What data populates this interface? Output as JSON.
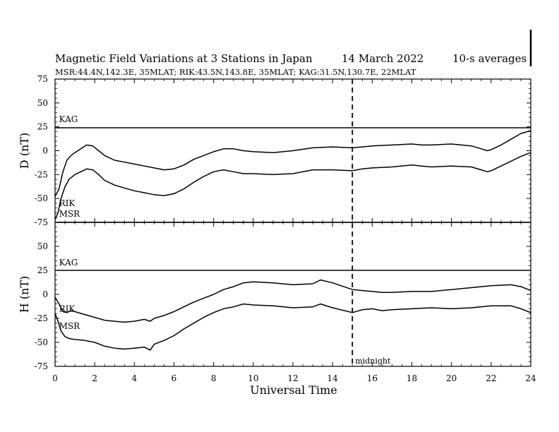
{
  "title": "Magnetic Field Variations at 3 Stations in Japan",
  "date": "14 March   2022",
  "averaging": "10-s averages",
  "subtitle": "MSR:44.4N,142.3E, 35MLAT;  RIK:43.5N,143.8E, 35MLAT;  KAG:31.5N,130.7E, 22MLAT",
  "chart_data": {
    "type": "line",
    "xlabel": "Universal Time",
    "xlim": [
      0,
      24
    ],
    "x_ticks": [
      "0",
      "2",
      "4",
      "6",
      "8",
      "10",
      "12",
      "14",
      "16",
      "18",
      "20",
      "22",
      "24"
    ],
    "grid": false,
    "vline": {
      "x": 15,
      "label": "midnight",
      "style": "dashed"
    },
    "panels": [
      {
        "id": "D",
        "ylabel": "D (nT)",
        "ylim": [
          -75,
          75
        ],
        "y_ticks": [
          "75",
          "50",
          "25",
          "0",
          "-25",
          "-50",
          "-75"
        ],
        "series": [
          {
            "name": "KAG",
            "x": [
              0,
              24
            ],
            "values": [
              24,
              24
            ]
          },
          {
            "name": "",
            "x": [
              0,
              0.2,
              0.4,
              0.6,
              0.8,
              1.0,
              1.3,
              1.6,
              1.9,
              2.2,
              2.5,
              3.0,
              3.5,
              4.0,
              4.5,
              5.0,
              5.5,
              6.0,
              6.5,
              7.0,
              7.5,
              8.0,
              8.5,
              9.0,
              9.5,
              10.0,
              11.0,
              12.0,
              13.0,
              14.0,
              15.0,
              15.5,
              16.0,
              17.0,
              18.0,
              18.5,
              19.0,
              20.0,
              21.0,
              21.5,
              21.8,
              22.0,
              22.5,
              23.0,
              23.5,
              24.0
            ],
            "values": [
              -48,
              -40,
              -22,
              -10,
              -5,
              -2,
              2,
              6,
              5,
              0,
              -5,
              -10,
              -12,
              -14,
              -16,
              -18,
              -20,
              -19,
              -15,
              -9,
              -5,
              -1,
              2,
              2,
              0,
              -1,
              -2,
              0,
              3,
              4,
              3,
              4,
              5,
              6,
              7,
              6,
              6,
              7,
              5,
              2,
              0,
              1,
              6,
              12,
              18,
              21
            ]
          },
          {
            "name": "RIK",
            "x": [
              0,
              0.15,
              0.3,
              0.5,
              0.7,
              1.0,
              1.3,
              1.6,
              1.9,
              2.2,
              2.5,
              3.0,
              3.5,
              4.0,
              4.5,
              5.0,
              5.5,
              6.0,
              6.5,
              7.0,
              7.5,
              8.0,
              8.5,
              9.0,
              9.5,
              10.0,
              11.0,
              12.0,
              13.0,
              14.0,
              15.0,
              15.5,
              16.0,
              17.0,
              18.0,
              18.5,
              19.0,
              20.0,
              21.0,
              21.5,
              21.8,
              22.0,
              22.5,
              23.0,
              23.5,
              24.0
            ],
            "values": [
              -72,
              -65,
              -50,
              -38,
              -30,
              -25,
              -22,
              -19,
              -20,
              -25,
              -31,
              -36,
              -39,
              -42,
              -44,
              -46,
              -47,
              -45,
              -40,
              -33,
              -27,
              -22,
              -20,
              -22,
              -24,
              -24,
              -25,
              -24,
              -20,
              -20,
              -21,
              -19,
              -18,
              -17,
              -15,
              -16,
              -17,
              -16,
              -17,
              -20,
              -22,
              -21,
              -16,
              -11,
              -6,
              -2
            ]
          },
          {
            "name": "MSR",
            "x": [
              0,
              24
            ],
            "values": [
              -75,
              -75
            ]
          }
        ]
      },
      {
        "id": "H",
        "ylabel": "H (nT)",
        "ylim": [
          -75,
          75
        ],
        "y_ticks": [
          "75",
          "50",
          "25",
          "0",
          "-25",
          "-50",
          "-75"
        ],
        "series": [
          {
            "name": "KAG",
            "x": [
              0,
              24
            ],
            "values": [
              25,
              25
            ]
          },
          {
            "name": "RIK",
            "x": [
              0,
              0.2,
              0.4,
              0.6,
              0.8,
              1.0,
              1.5,
              2.0,
              2.5,
              3.0,
              3.5,
              4.0,
              4.5,
              4.8,
              5.0,
              5.5,
              6.0,
              6.5,
              7.0,
              7.5,
              8.0,
              8.5,
              9.0,
              9.5,
              10.0,
              11.0,
              12.0,
              13.0,
              13.4,
              14.0,
              15.0,
              15.5,
              16.0,
              16.5,
              17.0,
              18.0,
              19.0,
              20.0,
              21.0,
              22.0,
              23.0,
              23.5,
              24.0
            ],
            "values": [
              -3,
              -10,
              -18,
              -19,
              -17,
              -18,
              -21,
              -24,
              -27,
              -28,
              -29,
              -28,
              -26,
              -28,
              -25,
              -22,
              -18,
              -13,
              -8,
              -4,
              0,
              5,
              8,
              12,
              13,
              12,
              10,
              11,
              15,
              12,
              5,
              4,
              3,
              2,
              2,
              3,
              3,
              5,
              7,
              9,
              10,
              8,
              4
            ]
          },
          {
            "name": "MSR",
            "x": [
              0,
              0.15,
              0.3,
              0.5,
              0.7,
              1.0,
              1.5,
              2.0,
              2.5,
              3.0,
              3.5,
              4.0,
              4.5,
              4.8,
              5.0,
              5.5,
              6.0,
              6.5,
              7.0,
              7.5,
              8.0,
              8.5,
              9.0,
              9.5,
              10.0,
              11.0,
              12.0,
              13.0,
              13.4,
              14.0,
              15.0,
              15.5,
              16.0,
              16.5,
              17.0,
              18.0,
              19.0,
              20.0,
              21.0,
              22.0,
              23.0,
              23.5,
              24.0
            ],
            "values": [
              -20,
              -28,
              -38,
              -44,
              -46,
              -47,
              -48,
              -50,
              -54,
              -56,
              -57,
              -56,
              -55,
              -58,
              -52,
              -48,
              -43,
              -36,
              -30,
              -24,
              -19,
              -15,
              -13,
              -10,
              -11,
              -12,
              -14,
              -13,
              -10,
              -14,
              -19,
              -16,
              -15,
              -17,
              -16,
              -15,
              -14,
              -15,
              -14,
              -12,
              -12,
              -15,
              -19
            ]
          }
        ]
      }
    ],
    "station_labels": [
      {
        "panel": "D",
        "text": "KAG",
        "x": 0.2,
        "y": 30
      },
      {
        "panel": "D",
        "text": "RIK",
        "x": 0.2,
        "y": -58
      },
      {
        "panel": "H",
        "text": "MSR",
        "x": 0.2,
        "y": 81
      },
      {
        "panel": "H",
        "text": "KAG",
        "x": 0.2,
        "y": 30
      },
      {
        "panel": "H",
        "text": "RIK",
        "x": 0.2,
        "y": -18
      },
      {
        "panel": "H",
        "text": "MSR",
        "x": 0.2,
        "y": -36
      }
    ]
  }
}
